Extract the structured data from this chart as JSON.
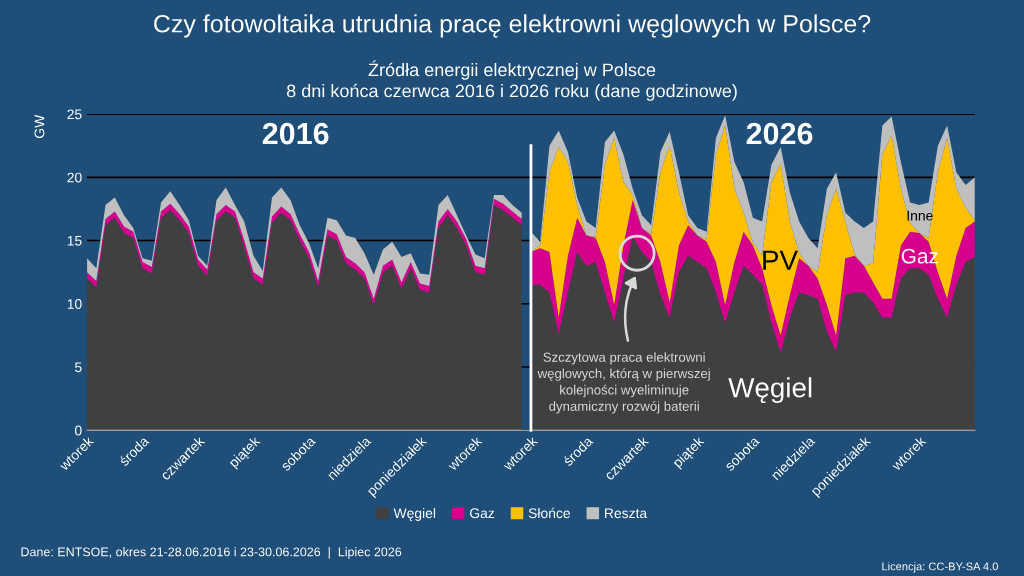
{
  "chart_data": [
    {
      "type": "area",
      "stacked": true,
      "title": "Czy fotowoltaika utrudnia pracę elektrowni węglowych w Polsce?",
      "subtitle": "Źródła energii elektrycznej w Polsce\n8 dni końca czerwca 2016 i 2026 roku (dane godzinowe)",
      "ylabel": "GW",
      "categories": [
        "wtorek",
        null,
        null,
        null,
        null,
        null,
        "środa",
        null,
        null,
        null,
        null,
        null,
        "czwartek",
        null,
        null,
        null,
        null,
        null,
        "piątek",
        null,
        null,
        null,
        null,
        null,
        "sobota",
        null,
        null,
        null,
        null,
        null,
        "niedziela",
        null,
        null,
        null,
        null,
        null,
        "poniedziałek",
        null,
        null,
        null,
        null,
        null,
        "wtorek",
        null,
        null,
        null,
        null,
        null
      ],
      "series": [
        {
          "color": "#404040",
          "values": [
            12.0,
            11.3,
            16.2,
            16.8,
            15.6,
            15.2,
            12.8,
            12.4,
            16.8,
            17.4,
            16.6,
            15.6,
            13.0,
            12.2,
            16.6,
            17.3,
            16.8,
            14.5,
            12.0,
            11.5,
            16.4,
            17.2,
            16.6,
            15.0,
            13.6,
            11.3,
            15.4,
            15.0,
            13.2,
            12.7,
            12.0,
            9.9,
            12.5,
            13.0,
            11.2,
            12.8,
            11.1,
            10.9,
            16.0,
            17.0,
            16.0,
            14.6,
            12.5,
            12.3,
            17.8,
            17.4,
            16.8,
            16.2
          ]
        },
        {
          "color": "#d6008c",
          "values": [
            0.5,
            0.5,
            0.5,
            0.5,
            0.5,
            0.5,
            0.5,
            0.5,
            0.5,
            0.5,
            0.5,
            0.5,
            0.5,
            0.5,
            0.5,
            0.5,
            0.5,
            0.5,
            0.5,
            0.5,
            0.5,
            0.5,
            0.5,
            0.5,
            0.5,
            0.5,
            0.5,
            0.5,
            0.5,
            0.5,
            0.5,
            0.5,
            0.5,
            0.5,
            0.5,
            0.5,
            0.5,
            0.5,
            0.5,
            0.5,
            0.5,
            0.5,
            0.5,
            0.5,
            0.5,
            0.5,
            0.5,
            0.5
          ]
        },
        {
          "color": "#bfbfbf",
          "values": [
            1.1,
            1.0,
            1.1,
            1.1,
            0.9,
            0.3,
            0.3,
            0.5,
            0.7,
            1.0,
            0.7,
            0.5,
            0.3,
            0.3,
            1.1,
            1.4,
            0.5,
            1.5,
            1.3,
            0.6,
            1.5,
            1.5,
            1.1,
            0.7,
            0.7,
            1.0,
            0.9,
            1.1,
            1.7,
            2.0,
            1.5,
            1.9,
            1.3,
            1.4,
            2.0,
            0.7,
            0.8,
            0.9,
            1.3,
            1.1,
            0.5,
            0.3,
            0.9,
            0.8,
            0.3,
            0.7,
            0.5,
            0.5
          ]
        }
      ],
      "ylim": [
        0,
        25
      ],
      "yticks": [
        0,
        5,
        10,
        15,
        20,
        25
      ],
      "grid": "y",
      "annotations": [
        "2016",
        "Dane: ENTSOE, okres 21-28.06.2016 i 23-30.06.2026  |  Lipiec 2026",
        "Licencja: CC-BY-SA 4.0"
      ]
    },
    {
      "type": "area",
      "stacked": true,
      "categories": [
        "wtorek",
        null,
        null,
        null,
        null,
        null,
        "środa",
        null,
        null,
        null,
        null,
        null,
        "czwartek",
        null,
        null,
        null,
        null,
        null,
        "piątek",
        null,
        null,
        null,
        null,
        null,
        "sobota",
        null,
        null,
        null,
        null,
        null,
        "niedziela",
        null,
        null,
        null,
        null,
        null,
        "poniedziałek",
        null,
        null,
        null,
        null,
        null,
        "wtorek",
        null,
        null,
        null,
        null,
        null,
        null
      ],
      "series": [
        {
          "name": "Węgiel",
          "color": "#404040",
          "values": [
            11.5,
            11.5,
            10.9,
            7.6,
            10.9,
            14.1,
            13.0,
            13.3,
            10.9,
            8.5,
            12.0,
            15.3,
            14.1,
            13.3,
            10.7,
            8.9,
            12.5,
            13.8,
            13.3,
            12.8,
            10.9,
            8.5,
            10.9,
            13.0,
            12.3,
            11.5,
            8.5,
            6.1,
            8.9,
            10.9,
            10.7,
            10.4,
            7.8,
            6.2,
            10.7,
            10.9,
            10.9,
            10.1,
            8.9,
            8.9,
            12.0,
            12.8,
            12.8,
            12.3,
            10.4,
            8.9,
            11.5,
            13.3,
            13.7
          ]
        },
        {
          "name": "Gaz",
          "color": "#d6008c",
          "values": [
            2.6,
            2.9,
            3.2,
            1.3,
            2.9,
            2.7,
            2.4,
            1.9,
            2.4,
            1.4,
            2.6,
            2.9,
            1.9,
            2.1,
            2.6,
            1.2,
            2.1,
            2.4,
            2.1,
            2.1,
            2.4,
            1.4,
            2.4,
            2.7,
            2.3,
            1.3,
            1.4,
            1.4,
            1.8,
            2.7,
            2.3,
            1.6,
            2.1,
            1.3,
            2.9,
            2.9,
            2.1,
            1.6,
            1.5,
            1.5,
            2.6,
            2.9,
            2.8,
            2.6,
            2.1,
            1.5,
            2.3,
            2.7,
            2.8
          ]
        },
        {
          "name": "Słońce",
          "color": "#ffc000",
          "values": [
            0,
            0.2,
            6.3,
            13.5,
            7.4,
            1.0,
            0,
            0.1,
            7.7,
            13.2,
            5.0,
            0.4,
            0,
            0.1,
            7.1,
            12.4,
            4.2,
            0.3,
            0,
            0.2,
            8.5,
            14.2,
            5.8,
            1.5,
            0.2,
            1.0,
            9.7,
            13.6,
            5.8,
            0.4,
            0,
            0.5,
            7.1,
            11.6,
            2.9,
            0.1,
            0,
            1.5,
            11.4,
            12.9,
            4.5,
            0.7,
            0,
            0.3,
            7.9,
            12.7,
            5.3,
            1.6,
            0.1
          ]
        },
        {
          "name": "Reszta",
          "color": "#bfbfbf",
          "values": [
            1.6,
            0.3,
            2.1,
            1.3,
            0.8,
            0.6,
            1.1,
            0.7,
            1.8,
            0.6,
            2.2,
            0.5,
            1.0,
            0.7,
            1.6,
            1.1,
            1.6,
            0.5,
            0.6,
            0.6,
            1.3,
            0.8,
            2.1,
            2.4,
            2.0,
            2.7,
            1.4,
            1.3,
            2.3,
            2.5,
            2.2,
            1.9,
            2.1,
            1.3,
            0.7,
            2.6,
            3.0,
            3.3,
            2.3,
            1.5,
            2.1,
            1.6,
            2.2,
            2.8,
            2.1,
            1.0,
            1.3,
            1.8,
            3.4
          ]
        }
      ],
      "ylim": [
        0,
        25
      ],
      "yticks": [
        0,
        5,
        10,
        15,
        20,
        25
      ],
      "grid": "y",
      "tick_labels": "x",
      "legend": "bottom",
      "annotations": [
        "2026",
        "PV",
        "Gaz",
        "Inne",
        "Węgiel",
        "Szczytowa praca elektrowni\nwęglowych, którą w pierwszej\nkolejności wyeliminuje\ndynamiczny rozwój baterii"
      ]
    }
  ]
}
